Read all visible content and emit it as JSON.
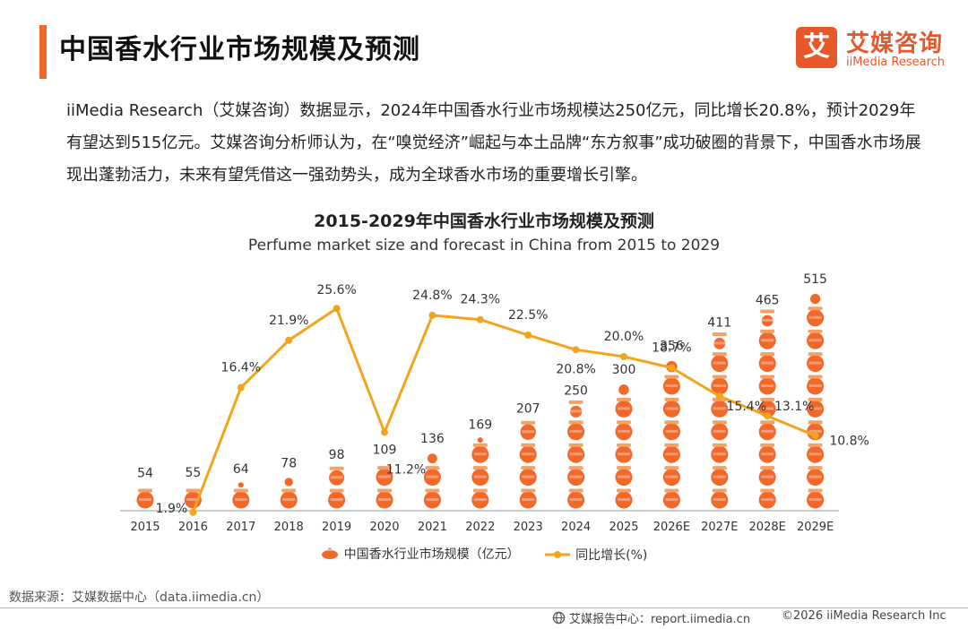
{
  "header": {
    "title": "中国香水行业市场规模及预测",
    "logo_mark": "艾",
    "logo_cn": "艾媒咨询",
    "logo_en": "iiMedia Research"
  },
  "intro": "iiMedia Research（艾媒咨询）数据显示，2024年中国香水行业市场规模达250亿元，同比增长20.8%，预计2029年有望达到515亿元。艾媒咨询分析师认为，在“嗅觉经济”崛起与本土品牌“东方叙事”成功破圈的背景下，中国香水市场展现出蓬勃活力，未来有望凭借这一强劲势头，成为全球香水市场的重要增长引擎。",
  "chart_data": {
    "type": "bar",
    "title": "2015-2029年中国香水行业市场规模及预测",
    "subtitle": "Perfume market size and forecast in China from 2015 to 2029",
    "categories": [
      "2015",
      "2016",
      "2017",
      "2018",
      "2019",
      "2020",
      "2021",
      "2022",
      "2023",
      "2024",
      "2025",
      "2026E",
      "2027E",
      "2028E",
      "2029E"
    ],
    "series": [
      {
        "name": "中国香水行业市场规模（亿元）",
        "type": "bar",
        "values": [
          54,
          55,
          64,
          78,
          98,
          109,
          136,
          169,
          207,
          250,
          300,
          356,
          411,
          465,
          515
        ],
        "labels": [
          "54",
          "55",
          "64",
          "78",
          "98",
          "109",
          "136",
          "169",
          "207",
          "250",
          "300",
          "356",
          "411",
          "465",
          "515"
        ],
        "color": "#f0682a"
      },
      {
        "name": "同比增长(%)",
        "type": "line",
        "values": [
          null,
          1.9,
          16.4,
          21.9,
          25.6,
          11.2,
          24.8,
          24.3,
          22.5,
          20.8,
          20.0,
          18.7,
          15.4,
          13.1,
          10.8
        ],
        "labels": [
          "",
          "1.9%",
          "16.4%",
          "21.9%",
          "25.6%",
          "11.2%",
          "24.8%",
          "24.3%",
          "22.5%",
          "20.8%",
          "20.0%",
          "18.7%",
          "15.4%",
          "13.1%",
          "10.8%"
        ],
        "color": "#f2a51c"
      }
    ],
    "legend": [
      "中国香水行业市场规模（亿元）",
      "同比增长(%)"
    ],
    "legend_position": "bottom"
  },
  "footer": {
    "source": "数据来源：艾媒数据中心（data.iimedia.cn）",
    "report": "艾媒报告中心：report.iimedia.cn",
    "copyright": "©2026  iiMedia Research  Inc"
  },
  "colors": {
    "accent": "#f0682a",
    "line": "#f2a51c",
    "text": "#222222"
  }
}
